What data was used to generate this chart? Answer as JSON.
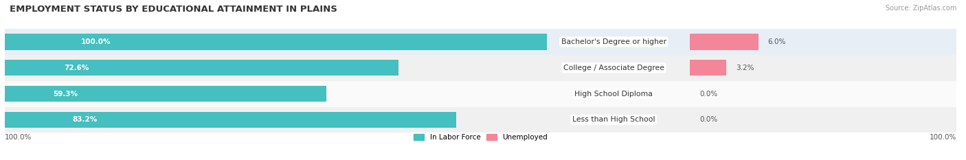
{
  "title": "EMPLOYMENT STATUS BY EDUCATIONAL ATTAINMENT IN PLAINS",
  "source": "Source: ZipAtlas.com",
  "categories": [
    "Less than High School",
    "High School Diploma",
    "College / Associate Degree",
    "Bachelor's Degree or higher"
  ],
  "labor_force_values": [
    83.2,
    59.3,
    72.6,
    100.0
  ],
  "unemployed_values": [
    0.0,
    0.0,
    3.2,
    6.0
  ],
  "labor_force_color": "#45BFBF",
  "unemployed_color": "#F4869A",
  "row_bg_colors": [
    "#F0F0F0",
    "#FAFAFA",
    "#F0F0F0",
    "#E8EEF5"
  ],
  "bar_height": 0.62,
  "legend_labels": [
    "In Labor Force",
    "Unemployed"
  ],
  "title_fontsize": 9.5,
  "label_fontsize": 7.8,
  "tick_fontsize": 7.5,
  "source_fontsize": 7.0,
  "lf_label_color": "white",
  "val_label_color": "#555555",
  "bottom_left_label": "100.0%",
  "bottom_right_label": "100.0%"
}
